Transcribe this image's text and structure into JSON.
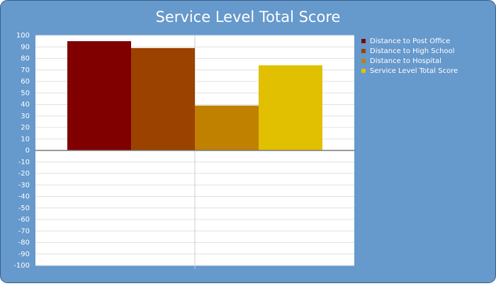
{
  "chart_data": {
    "type": "bar",
    "title": "Service Level Total Score",
    "categories": [
      null
    ],
    "series": [
      {
        "name": "Distance to Post Office",
        "color": "#800000",
        "values": [
          95
        ]
      },
      {
        "name": "Distance to High School",
        "color": "#9c4200",
        "values": [
          89
        ]
      },
      {
        "name": "Distance to Hospital",
        "color": "#c08000",
        "values": [
          39
        ]
      },
      {
        "name": "Service Level Total Score",
        "color": "#e0c000",
        "values": [
          74
        ]
      }
    ],
    "ylim": [
      -100,
      100
    ],
    "yticks": [
      -100,
      -90,
      -80,
      -70,
      -60,
      -50,
      -40,
      -30,
      -20,
      -10,
      0,
      10,
      20,
      30,
      40,
      50,
      60,
      70,
      80,
      90,
      100
    ],
    "grid": true,
    "legend": "right"
  }
}
